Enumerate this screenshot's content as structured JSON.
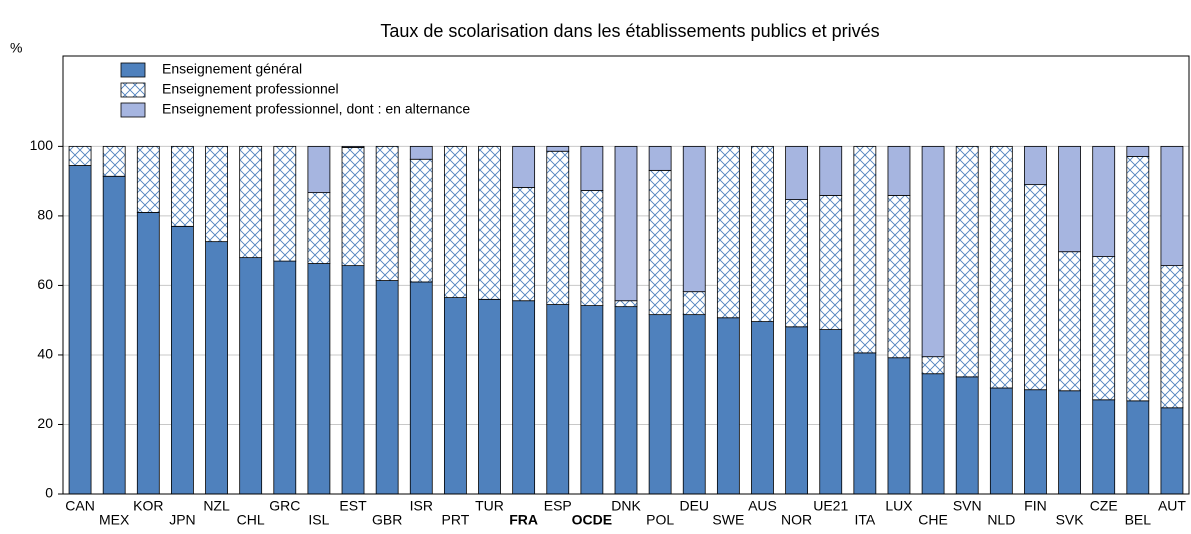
{
  "chart_data": {
    "type": "stacked_bar",
    "title": "Taux de scolarisation dans les établissements publics et privés",
    "y_label": "%",
    "categories": [
      "CAN",
      "MEX",
      "KOR",
      "JPN",
      "NZL",
      "CHL",
      "GRC",
      "ISL",
      "EST",
      "GBR",
      "ISR",
      "PRT",
      "TUR",
      "FRA",
      "ESP",
      "OCDE",
      "DNK",
      "POL",
      "DEU",
      "SWE",
      "AUS",
      "NOR",
      "UE21",
      "ITA",
      "LUX",
      "CHE",
      "SVN",
      "NLD",
      "FIN",
      "SVK",
      "CZE",
      "BEL",
      "AUT"
    ],
    "highlight_indices": [
      13,
      15
    ],
    "series": [
      {
        "name": "Enseignement général",
        "color": "#4f81bd",
        "hatch": false,
        "values": [
          94.5,
          91.4,
          81,
          77,
          72.6,
          68,
          67,
          66.3,
          65.7,
          61.4,
          61,
          56.5,
          56,
          55.6,
          54.5,
          54.2,
          53.9,
          51.6,
          51.6,
          50.7,
          49.6,
          48.1,
          47.3,
          40.6,
          39.2,
          34.6,
          33.7,
          30.5,
          30,
          29.7,
          27.1,
          26.8,
          24.8
        ]
      },
      {
        "name": "Enseignement professionnel",
        "color": "#4f81bd",
        "hatch": true,
        "values": [
          5.5,
          8.6,
          19,
          23,
          27.4,
          32,
          33,
          20.4,
          34,
          38.6,
          35.3,
          43.5,
          44,
          32.6,
          44.1,
          33.1,
          1.7,
          41.5,
          6.6,
          49.3,
          50.4,
          36.6,
          38.6,
          59.4,
          46.7,
          4.9,
          66.3,
          69.5,
          59,
          40,
          41.2,
          70.3,
          40.9
        ]
      },
      {
        "name": "Enseignement professionnel, dont : en alternance",
        "color": "#a6b5e0",
        "hatch": false,
        "values": [
          0,
          0,
          0,
          0,
          0,
          0,
          0,
          13.3,
          0.3,
          0,
          3.7,
          0,
          0,
          11.8,
          1.4,
          12.7,
          44.4,
          6.9,
          41.8,
          0,
          0,
          15.3,
          14.1,
          0,
          14.1,
          60.5,
          0,
          0,
          11,
          30.3,
          31.7,
          2.9,
          34.3
        ]
      }
    ],
    "ylim": [
      0,
      126
    ],
    "yticks": [
      0,
      20,
      40,
      60,
      80,
      100
    ],
    "grid": true,
    "legend": "top-left"
  }
}
